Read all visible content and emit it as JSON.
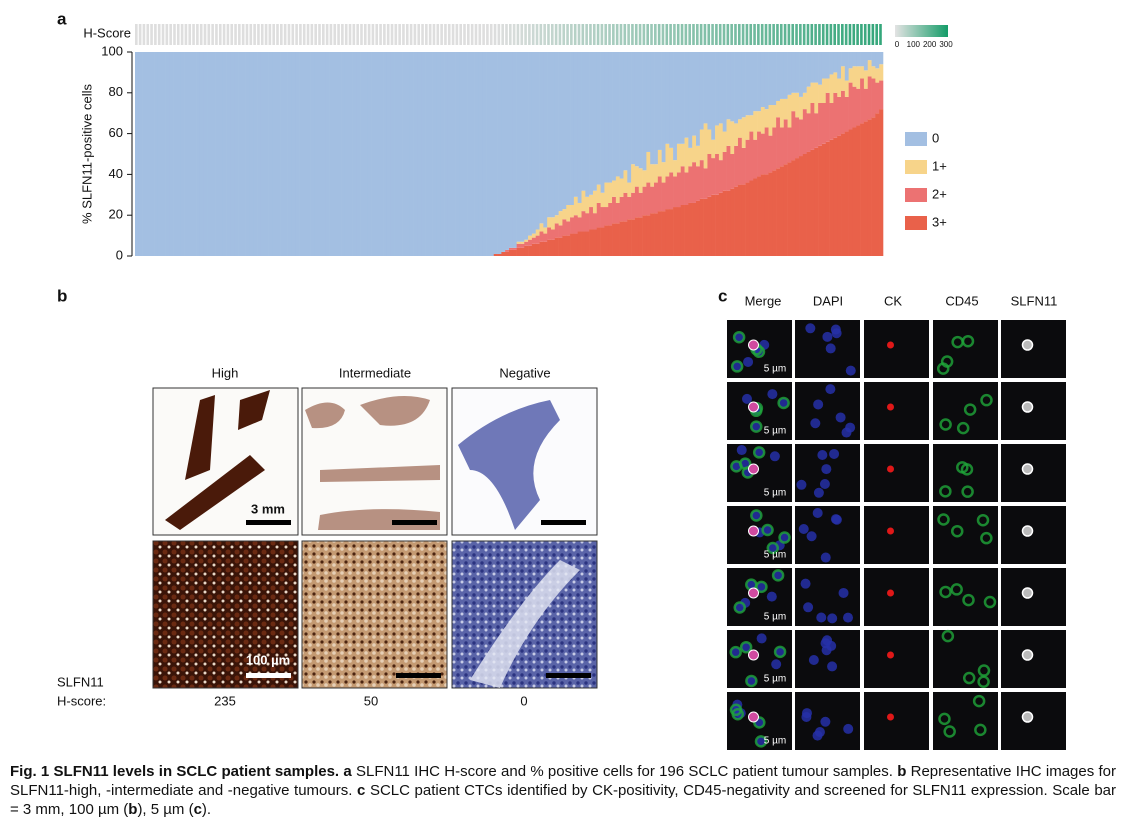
{
  "panel_labels": [
    "a",
    "b",
    "c"
  ],
  "chart_data": {
    "type": "stacked-bar",
    "heatmap_label": "H-Score",
    "hscore_lim": [
      0,
      300
    ],
    "hscore_ticks": [
      0,
      100,
      200,
      300
    ],
    "ylabel": "% SLFN11-positive cells",
    "ylim": [
      0,
      100
    ],
    "yticks": [
      0,
      20,
      40,
      60,
      80,
      100
    ],
    "series": [
      {
        "name": "0",
        "color": "#a3bfe2",
        "values": [
          100,
          100,
          100,
          100,
          100,
          100,
          100,
          100,
          100,
          100,
          100,
          100,
          100,
          100,
          100,
          100,
          100,
          100,
          100,
          100,
          100,
          100,
          100,
          100,
          100,
          100,
          100,
          100,
          100,
          100,
          100,
          100,
          100,
          100,
          100,
          100,
          100,
          100,
          100,
          100,
          100,
          100,
          100,
          100,
          100,
          100,
          100,
          100,
          100,
          100,
          100,
          100,
          100,
          100,
          100,
          100,
          100,
          100,
          100,
          100,
          100,
          100,
          100,
          100,
          100,
          100,
          100,
          100,
          100,
          100,
          100,
          100,
          100,
          100,
          100,
          100,
          100,
          100,
          100,
          100,
          100,
          100,
          100,
          100,
          100,
          100,
          100,
          100,
          100,
          100,
          100,
          100,
          100,
          100,
          99,
          99,
          98,
          97,
          96,
          96,
          93,
          93,
          92,
          90,
          89,
          87,
          84,
          86,
          81,
          81,
          80,
          78,
          77,
          75,
          75,
          71,
          74,
          68,
          71,
          70,
          68,
          65,
          69,
          64,
          64,
          63,
          61,
          62,
          58,
          64,
          55,
          56,
          57,
          58,
          49,
          55,
          55,
          48,
          54,
          45,
          47,
          53,
          45,
          45,
          42,
          47,
          41,
          46,
          38,
          35,
          38,
          43,
          36,
          35,
          39,
          33,
          34,
          35,
          33,
          32,
          31,
          31,
          29,
          29,
          27,
          28,
          26,
          26,
          24,
          23,
          23,
          21,
          20,
          20,
          22,
          20,
          17,
          15,
          15,
          16,
          13,
          13,
          11,
          10,
          13,
          7,
          14,
          8,
          7,
          7,
          7,
          9,
          4,
          7,
          8,
          6
        ]
      },
      {
        "name": "1+",
        "color": "#f7d48a",
        "values": [
          0,
          0,
          0,
          0,
          0,
          0,
          0,
          0,
          0,
          0,
          0,
          0,
          0,
          0,
          0,
          0,
          0,
          0,
          0,
          0,
          0,
          0,
          0,
          0,
          0,
          0,
          0,
          0,
          0,
          0,
          0,
          0,
          0,
          0,
          0,
          0,
          0,
          0,
          0,
          0,
          0,
          0,
          0,
          0,
          0,
          0,
          0,
          0,
          0,
          0,
          0,
          0,
          0,
          0,
          0,
          0,
          0,
          0,
          0,
          0,
          0,
          0,
          0,
          0,
          0,
          0,
          0,
          0,
          0,
          0,
          0,
          0,
          0,
          0,
          0,
          0,
          0,
          0,
          0,
          0,
          0,
          0,
          0,
          0,
          0,
          0,
          0,
          0,
          0,
          0,
          0,
          0,
          0,
          0,
          0,
          0,
          0,
          0,
          0,
          0,
          1,
          1,
          1,
          2,
          2,
          3,
          4,
          3,
          5,
          6,
          4,
          7,
          5,
          8,
          6,
          9,
          7,
          10,
          8,
          6,
          11,
          9,
          7,
          12,
          10,
          8,
          13,
          9,
          11,
          7,
          14,
          10,
          12,
          8,
          15,
          11,
          9,
          13,
          10,
          16,
          12,
          8,
          14,
          11,
          17,
          9,
          13,
          10,
          15,
          22,
          12,
          9,
          14,
          18,
          10,
          13,
          16,
          11,
          9,
          15,
          12,
          8,
          14,
          10,
          13,
          9,
          15,
          11,
          8,
          14,
          10,
          16,
          9,
          12,
          11,
          8,
          13,
          10,
          15,
          9,
          12,
          7,
          14,
          10,
          9,
          12,
          8,
          7,
          10,
          11,
          6,
          9,
          8,
          6,
          7,
          8
        ]
      },
      {
        "name": "2+",
        "color": "#ec7272",
        "values": [
          0,
          0,
          0,
          0,
          0,
          0,
          0,
          0,
          0,
          0,
          0,
          0,
          0,
          0,
          0,
          0,
          0,
          0,
          0,
          0,
          0,
          0,
          0,
          0,
          0,
          0,
          0,
          0,
          0,
          0,
          0,
          0,
          0,
          0,
          0,
          0,
          0,
          0,
          0,
          0,
          0,
          0,
          0,
          0,
          0,
          0,
          0,
          0,
          0,
          0,
          0,
          0,
          0,
          0,
          0,
          0,
          0,
          0,
          0,
          0,
          0,
          0,
          0,
          0,
          0,
          0,
          0,
          0,
          0,
          0,
          0,
          0,
          0,
          0,
          0,
          0,
          0,
          0,
          0,
          0,
          0,
          0,
          0,
          0,
          0,
          0,
          0,
          0,
          0,
          0,
          0,
          0,
          0,
          0,
          0,
          0,
          0,
          1,
          1,
          1,
          2,
          2,
          2,
          3,
          3,
          4,
          5,
          4,
          6,
          5,
          7,
          6,
          8,
          7,
          8,
          9,
          7,
          10,
          9,
          11,
          8,
          12,
          10,
          9,
          11,
          13,
          10,
          12,
          14,
          11,
          13,
          15,
          12,
          14,
          16,
          13,
          15,
          17,
          14,
          16,
          18,
          15,
          17,
          19,
          16,
          18,
          20,
          17,
          19,
          15,
          21,
          18,
          20,
          16,
          19,
          22,
          17,
          20,
          23,
          18,
          21,
          24,
          19,
          22,
          20,
          23,
          18,
          21,
          25,
          19,
          22,
          17,
          24,
          20,
          18,
          22,
          19,
          23,
          17,
          21,
          20,
          24,
          18,
          22,
          19,
          21,
          17,
          23,
          20,
          18,
          22,
          16,
          21,
          19,
          15,
          14
        ]
      },
      {
        "name": "3+",
        "color": "#e9614a",
        "values": [
          0,
          0,
          0,
          0,
          0,
          0,
          0,
          0,
          0,
          0,
          0,
          0,
          0,
          0,
          0,
          0,
          0,
          0,
          0,
          0,
          0,
          0,
          0,
          0,
          0,
          0,
          0,
          0,
          0,
          0,
          0,
          0,
          0,
          0,
          0,
          0,
          0,
          0,
          0,
          0,
          0,
          0,
          0,
          0,
          0,
          0,
          0,
          0,
          0,
          0,
          0,
          0,
          0,
          0,
          0,
          0,
          0,
          0,
          0,
          0,
          0,
          0,
          0,
          0,
          0,
          0,
          0,
          0,
          0,
          0,
          0,
          0,
          0,
          0,
          0,
          0,
          0,
          0,
          0,
          0,
          0,
          0,
          0,
          0,
          0,
          0,
          0,
          0,
          0,
          0,
          0,
          0,
          0,
          0,
          1,
          1,
          2,
          2,
          3,
          3,
          4,
          4,
          5,
          5,
          6,
          6,
          7,
          7,
          8,
          8,
          9,
          9,
          10,
          10,
          11,
          11,
          12,
          12,
          12,
          13,
          13,
          14,
          14,
          15,
          15,
          16,
          16,
          17,
          17,
          18,
          18,
          19,
          19,
          20,
          20,
          21,
          21,
          22,
          22,
          23,
          23,
          24,
          24,
          25,
          25,
          26,
          26,
          27,
          28,
          28,
          29,
          30,
          30,
          31,
          32,
          32,
          33,
          34,
          35,
          35,
          36,
          37,
          38,
          39,
          40,
          40,
          41,
          42,
          43,
          44,
          45,
          46,
          47,
          48,
          49,
          50,
          51,
          52,
          53,
          54,
          55,
          56,
          57,
          58,
          59,
          60,
          61,
          62,
          63,
          64,
          65,
          66,
          67,
          68,
          70,
          72
        ]
      }
    ]
  },
  "panel_b": {
    "columns": [
      "High",
      "Intermediate",
      "Negative"
    ],
    "scale_labels": [
      "3 mm",
      "100 µm"
    ],
    "score_label": [
      "SLFN11",
      "H-score:"
    ],
    "scores": [
      "235",
      "50",
      "0"
    ]
  },
  "panel_c": {
    "columns": [
      "Merge",
      "DAPI",
      "CK",
      "CD45",
      "SLFN11"
    ],
    "scale_label": "5 µm"
  },
  "caption": [
    "Fig. 1  SLFN11 levels in SCLC patient samples.",
    "a",
    "SLFN11 IHC H-score and % positive cells for 196 SCLC patient tumour samples.",
    "b",
    "Representative IHC images for SLFN11-high, -intermediate and -negative tumours.",
    "c",
    "SCLC patient CTCs identified by CK-positivity, CD45-negativity and screened for SLFN11 expression. Scale bar = 3 mm, 100 µm (",
    "b",
    "), 5 µm (",
    "c",
    ")."
  ]
}
